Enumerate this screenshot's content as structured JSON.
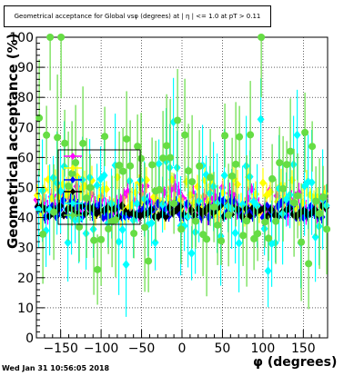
{
  "chart_data": {
    "type": "scatter",
    "title": "Geometrical acceptance for Global vsφ (degrees) at | η | <= 1.0 at pT > 0.11",
    "xlabel": "φ (degrees)",
    "ylabel": "Geometrical acceptance (%)",
    "xlim": [
      -180,
      180
    ],
    "ylim": [
      0,
      100
    ],
    "x_ticks": [
      -150,
      -100,
      -50,
      0,
      50,
      100,
      150
    ],
    "y_ticks": [
      0,
      10,
      20,
      30,
      40,
      50,
      60,
      70,
      80,
      90,
      100
    ],
    "grid": true,
    "legend_position": "center-left",
    "series": [
      {
        "name": "",
        "color": "#ff00ff",
        "marker": "diamond",
        "center": 46,
        "spread": 5,
        "err": 3
      },
      {
        "name": "",
        "color": "#ffff00",
        "marker": "diamond",
        "center": 47,
        "spread": 7,
        "err": 4
      },
      {
        "name": "",
        "color": "#0000ff",
        "marker": "diamond",
        "center": 43,
        "spread": 3,
        "err": 2
      },
      {
        "name": "",
        "color": "#000000",
        "marker": "diamond",
        "center": 42,
        "spread": 2,
        "err": 1.5
      },
      {
        "name": "",
        "color": "#00ffff",
        "marker": "diamond",
        "center": 45,
        "spread": 14,
        "err": 12
      },
      {
        "name": "",
        "color": "#66dd44",
        "marker": "circle",
        "center": 50,
        "spread": 18,
        "err": 15
      }
    ]
  },
  "footer": {
    "timestamp": "Wed Jan 31 10:56:05 2018"
  }
}
